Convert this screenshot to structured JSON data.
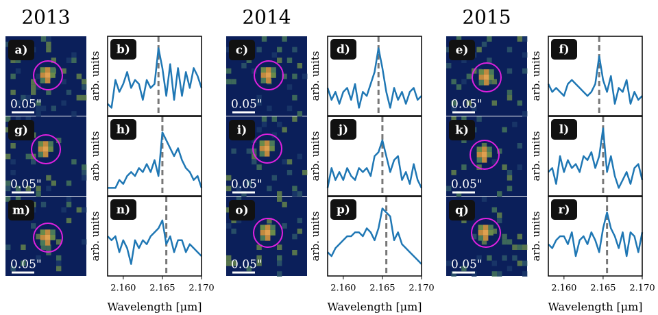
{
  "chart_data": [
    {
      "type": "image",
      "title": "2013",
      "label": "a)",
      "scale_label": "0.05\""
    },
    {
      "type": "line",
      "label": "b)",
      "ylabel": "arb. units",
      "color": "#1f77b4",
      "vline": 2.1645,
      "xlim": [
        2.158,
        2.17
      ],
      "ylim": [
        0,
        1
      ],
      "x": [
        2.158,
        2.1585,
        2.159,
        2.1595,
        2.16,
        2.1605,
        2.161,
        2.1615,
        2.162,
        2.1625,
        2.163,
        2.1635,
        2.164,
        2.1645,
        2.165,
        2.1655,
        2.166,
        2.1665,
        2.167,
        2.1675,
        2.168,
        2.1685,
        2.169,
        2.1695,
        2.17
      ],
      "values": [
        0.15,
        0.1,
        0.45,
        0.3,
        0.4,
        0.55,
        0.35,
        0.45,
        0.4,
        0.2,
        0.45,
        0.35,
        0.4,
        0.85,
        0.6,
        0.25,
        0.65,
        0.2,
        0.6,
        0.25,
        0.55,
        0.35,
        0.6,
        0.5,
        0.35
      ]
    },
    {
      "type": "image",
      "label": "g)",
      "scale_label": "0.05\""
    },
    {
      "type": "line",
      "label": "h)",
      "ylabel": "arb. units",
      "color": "#1f77b4",
      "vline": 2.165,
      "xlim": [
        2.158,
        2.17
      ],
      "ylim": [
        0,
        1
      ],
      "x": [
        2.158,
        2.1585,
        2.159,
        2.1595,
        2.16,
        2.1605,
        2.161,
        2.1615,
        2.162,
        2.1625,
        2.163,
        2.1635,
        2.164,
        2.1645,
        2.165,
        2.1655,
        2.166,
        2.1665,
        2.167,
        2.1675,
        2.168,
        2.1685,
        2.169,
        2.1695,
        2.17
      ],
      "values": [
        0.1,
        0.1,
        0.1,
        0.2,
        0.15,
        0.25,
        0.3,
        0.25,
        0.35,
        0.3,
        0.4,
        0.3,
        0.45,
        0.25,
        0.8,
        0.7,
        0.6,
        0.5,
        0.6,
        0.45,
        0.35,
        0.3,
        0.2,
        0.25,
        0.1
      ]
    },
    {
      "type": "image",
      "label": "m)",
      "scale_label": "0.05\""
    },
    {
      "type": "line",
      "label": "n)",
      "ylabel": "arb. units",
      "color": "#1f77b4",
      "vline": 2.1655,
      "xlim": [
        2.158,
        2.17
      ],
      "ylim": [
        0,
        1
      ],
      "xticks": [
        {
          "value": 2.16,
          "label": "2.160"
        },
        {
          "value": 2.165,
          "label": "2.165"
        },
        {
          "value": 2.17,
          "label": "2.170"
        }
      ],
      "xlabel": "Wavelength [μm]",
      "x": [
        2.158,
        2.1585,
        2.159,
        2.1595,
        2.16,
        2.1605,
        2.161,
        2.1615,
        2.162,
        2.1625,
        2.163,
        2.1635,
        2.164,
        2.1645,
        2.165,
        2.1655,
        2.166,
        2.1665,
        2.167,
        2.1675,
        2.168,
        2.1685,
        2.169,
        2.1695,
        2.17
      ],
      "values": [
        0.5,
        0.45,
        0.5,
        0.3,
        0.45,
        0.35,
        0.15,
        0.45,
        0.35,
        0.45,
        0.4,
        0.5,
        0.55,
        0.6,
        0.7,
        0.4,
        0.5,
        0.3,
        0.45,
        0.45,
        0.3,
        0.4,
        0.35,
        0.3,
        0.25
      ]
    },
    {
      "type": "image",
      "title": "2014",
      "label": "c)",
      "scale_label": "0.05\""
    },
    {
      "type": "line",
      "label": "d)",
      "ylabel": "arb. units",
      "color": "#1f77b4",
      "vline": 2.1645,
      "xlim": [
        2.158,
        2.17
      ],
      "ylim": [
        0,
        1
      ],
      "x": [
        2.158,
        2.1585,
        2.159,
        2.1595,
        2.16,
        2.1605,
        2.161,
        2.1615,
        2.162,
        2.1625,
        2.163,
        2.1635,
        2.164,
        2.1645,
        2.165,
        2.1655,
        2.166,
        2.1665,
        2.167,
        2.1675,
        2.168,
        2.1685,
        2.169,
        2.1695,
        2.17
      ],
      "values": [
        0.35,
        0.2,
        0.3,
        0.15,
        0.3,
        0.35,
        0.2,
        0.4,
        0.1,
        0.3,
        0.25,
        0.4,
        0.55,
        0.85,
        0.6,
        0.3,
        0.1,
        0.35,
        0.2,
        0.3,
        0.15,
        0.3,
        0.35,
        0.2,
        0.25
      ]
    },
    {
      "type": "image",
      "label": "i)",
      "scale_label": "0.05\""
    },
    {
      "type": "line",
      "label": "j)",
      "ylabel": "arb. units",
      "color": "#1f77b4",
      "vline": 2.165,
      "xlim": [
        2.158,
        2.17
      ],
      "ylim": [
        0,
        1
      ],
      "x": [
        2.158,
        2.1585,
        2.159,
        2.1595,
        2.16,
        2.1605,
        2.161,
        2.1615,
        2.162,
        2.1625,
        2.163,
        2.1635,
        2.164,
        2.1645,
        2.165,
        2.1655,
        2.166,
        2.1665,
        2.167,
        2.1675,
        2.168,
        2.1685,
        2.169,
        2.1695,
        2.17
      ],
      "values": [
        0.1,
        0.35,
        0.2,
        0.3,
        0.2,
        0.35,
        0.25,
        0.2,
        0.35,
        0.3,
        0.35,
        0.25,
        0.5,
        0.55,
        0.7,
        0.5,
        0.3,
        0.45,
        0.5,
        0.2,
        0.3,
        0.15,
        0.4,
        0.2,
        0.1
      ]
    },
    {
      "type": "image",
      "label": "o)",
      "scale_label": "0.05\""
    },
    {
      "type": "line",
      "label": "p)",
      "ylabel": "arb. units",
      "color": "#1f77b4",
      "vline": 2.1655,
      "xlim": [
        2.158,
        2.17
      ],
      "ylim": [
        0,
        1
      ],
      "xticks": [
        {
          "value": 2.16,
          "label": "2.160"
        },
        {
          "value": 2.165,
          "label": "2.165"
        },
        {
          "value": 2.17,
          "label": "2.170"
        }
      ],
      "xlabel": "Wavelength [μm]",
      "x": [
        2.158,
        2.1585,
        2.159,
        2.1595,
        2.16,
        2.1605,
        2.161,
        2.1615,
        2.162,
        2.1625,
        2.163,
        2.1635,
        2.164,
        2.1645,
        2.165,
        2.1655,
        2.166,
        2.1665,
        2.167,
        2.1675,
        2.168,
        2.1685,
        2.169,
        2.1695,
        2.17
      ],
      "values": [
        0.3,
        0.25,
        0.35,
        0.4,
        0.45,
        0.5,
        0.5,
        0.55,
        0.55,
        0.5,
        0.6,
        0.55,
        0.45,
        0.6,
        0.85,
        0.8,
        0.75,
        0.45,
        0.55,
        0.4,
        0.35,
        0.3,
        0.25,
        0.2,
        0.15
      ]
    },
    {
      "type": "image",
      "title": "2015",
      "label": "e)",
      "scale_label": "0.05\""
    },
    {
      "type": "line",
      "label": "f)",
      "ylabel": "arb. units",
      "color": "#1f77b4",
      "vline": 2.1645,
      "xlim": [
        2.158,
        2.17
      ],
      "ylim": [
        0,
        1
      ],
      "x": [
        2.158,
        2.1585,
        2.159,
        2.1595,
        2.16,
        2.1605,
        2.161,
        2.1615,
        2.162,
        2.1625,
        2.163,
        2.1635,
        2.164,
        2.1645,
        2.165,
        2.1655,
        2.166,
        2.1665,
        2.167,
        2.1675,
        2.168,
        2.1685,
        2.169,
        2.1695,
        2.17
      ],
      "values": [
        0.4,
        0.3,
        0.35,
        0.3,
        0.25,
        0.4,
        0.45,
        0.4,
        0.35,
        0.3,
        0.25,
        0.3,
        0.4,
        0.75,
        0.45,
        0.3,
        0.5,
        0.15,
        0.35,
        0.3,
        0.45,
        0.15,
        0.3,
        0.2,
        0.25
      ]
    },
    {
      "type": "image",
      "label": "k)",
      "scale_label": "0.05\""
    },
    {
      "type": "line",
      "label": "l)",
      "ylabel": "arb. units",
      "color": "#1f77b4",
      "vline": 2.165,
      "xlim": [
        2.158,
        2.17
      ],
      "ylim": [
        0,
        1
      ],
      "x": [
        2.158,
        2.1585,
        2.159,
        2.1595,
        2.16,
        2.1605,
        2.161,
        2.1615,
        2.162,
        2.1625,
        2.163,
        2.1635,
        2.164,
        2.1645,
        2.165,
        2.1655,
        2.166,
        2.1665,
        2.167,
        2.1675,
        2.168,
        2.1685,
        2.169,
        2.1695,
        2.17
      ],
      "values": [
        0.3,
        0.35,
        0.15,
        0.5,
        0.3,
        0.45,
        0.35,
        0.4,
        0.3,
        0.5,
        0.45,
        0.55,
        0.35,
        0.5,
        0.85,
        0.3,
        0.5,
        0.25,
        0.1,
        0.2,
        0.3,
        0.15,
        0.35,
        0.4,
        0.2
      ]
    },
    {
      "type": "image",
      "label": "q)",
      "scale_label": "0.05\""
    },
    {
      "type": "line",
      "label": "r)",
      "ylabel": "arb. units",
      "color": "#1f77b4",
      "vline": 2.1655,
      "xlim": [
        2.158,
        2.17
      ],
      "ylim": [
        0,
        1
      ],
      "xticks": [
        {
          "value": 2.16,
          "label": "2.160"
        },
        {
          "value": 2.165,
          "label": "2.165"
        },
        {
          "value": 2.17,
          "label": "2.170"
        }
      ],
      "xlabel": "Wavelength [μm]",
      "x": [
        2.158,
        2.1585,
        2.159,
        2.1595,
        2.16,
        2.1605,
        2.161,
        2.1615,
        2.162,
        2.1625,
        2.163,
        2.1635,
        2.164,
        2.1645,
        2.165,
        2.1655,
        2.166,
        2.1665,
        2.167,
        2.1675,
        2.168,
        2.1685,
        2.169,
        2.1695,
        2.17
      ],
      "values": [
        0.4,
        0.35,
        0.45,
        0.5,
        0.5,
        0.4,
        0.55,
        0.25,
        0.45,
        0.5,
        0.4,
        0.55,
        0.45,
        0.3,
        0.6,
        0.8,
        0.6,
        0.5,
        0.35,
        0.55,
        0.25,
        0.55,
        0.5,
        0.3,
        0.55
      ]
    }
  ]
}
